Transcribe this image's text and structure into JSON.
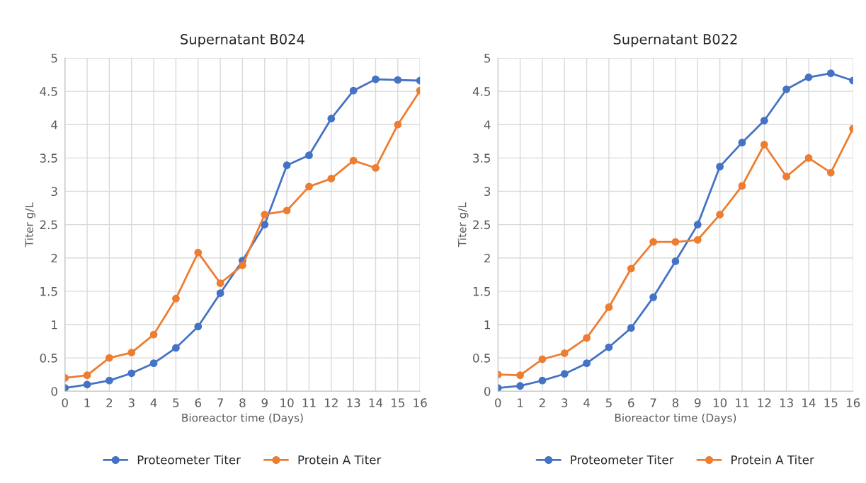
{
  "chart_data": [
    {
      "type": "line",
      "title": "Supernatant B024",
      "xlabel": "Bioreactor time (Days)",
      "ylabel": "Titer g/L",
      "x": [
        0,
        1,
        2,
        3,
        4,
        5,
        6,
        7,
        8,
        9,
        10,
        11,
        12,
        13,
        14,
        15,
        16
      ],
      "series": [
        {
          "name": "Proteometer Titer",
          "color": "#4472c4",
          "values": [
            0.05,
            0.1,
            0.16,
            0.27,
            0.42,
            0.65,
            0.97,
            1.47,
            1.96,
            2.5,
            3.39,
            3.54,
            4.09,
            4.51,
            4.68,
            4.67,
            4.66
          ]
        },
        {
          "name": "Protein A Titer",
          "color": "#ed7d31",
          "values": [
            0.2,
            0.24,
            0.5,
            0.58,
            0.85,
            1.39,
            2.08,
            1.62,
            1.89,
            2.65,
            2.71,
            3.07,
            3.19,
            3.46,
            3.35,
            4.0,
            4.51
          ]
        }
      ],
      "xlim": [
        0,
        16
      ],
      "xticks": [
        0,
        1,
        2,
        3,
        4,
        5,
        6,
        7,
        8,
        9,
        10,
        11,
        12,
        13,
        14,
        15,
        16
      ],
      "ylim": [
        0,
        5
      ],
      "yticks": [
        0,
        0.5,
        1,
        1.5,
        2,
        2.5,
        3,
        3.5,
        4,
        4.5,
        5
      ],
      "grid": true,
      "legend": "bottom",
      "marker": "circle",
      "line_style": "solid"
    },
    {
      "type": "line",
      "title": "Supernatant B022",
      "xlabel": "Bioreactor time (Days)",
      "ylabel": "Titer g/L",
      "x": [
        0,
        1,
        2,
        3,
        4,
        5,
        6,
        7,
        8,
        9,
        10,
        11,
        12,
        13,
        14,
        15,
        16
      ],
      "series": [
        {
          "name": "Proteometer Titer",
          "color": "#4472c4",
          "values": [
            0.05,
            0.08,
            0.16,
            0.26,
            0.42,
            0.66,
            0.95,
            1.41,
            1.95,
            2.5,
            3.37,
            3.73,
            4.06,
            4.53,
            4.71,
            4.77,
            4.66
          ]
        },
        {
          "name": "Protein A Titer",
          "color": "#ed7d31",
          "values": [
            0.25,
            0.24,
            0.48,
            0.57,
            0.8,
            1.26,
            1.84,
            2.24,
            2.24,
            2.27,
            2.65,
            3.08,
            3.7,
            3.22,
            3.5,
            3.28,
            3.94
          ]
        }
      ],
      "xlim": [
        0,
        16
      ],
      "xticks": [
        0,
        1,
        2,
        3,
        4,
        5,
        6,
        7,
        8,
        9,
        10,
        11,
        12,
        13,
        14,
        15,
        16
      ],
      "ylim": [
        0,
        5
      ],
      "yticks": [
        0,
        0.5,
        1,
        1.5,
        2,
        2.5,
        3,
        3.5,
        4,
        4.5,
        5
      ],
      "grid": true,
      "legend": "bottom",
      "marker": "circle",
      "line_style": "solid"
    }
  ]
}
